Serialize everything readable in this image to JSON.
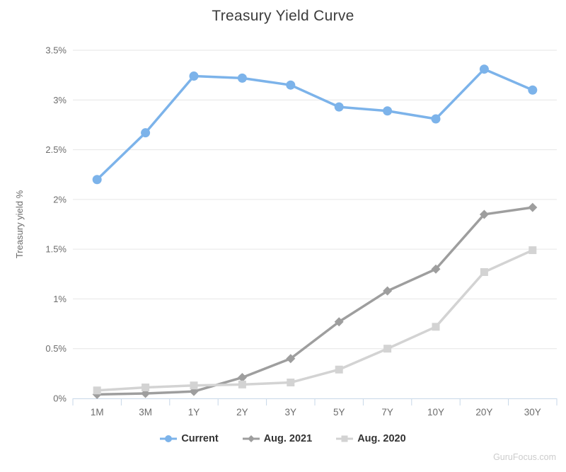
{
  "title": "Treasury Yield Curve",
  "watermark": "GuruFocus.com",
  "colors": {
    "title_text": "#3c3c3c",
    "tick_text": "#6d6d6d",
    "legend_text": "#333333",
    "watermark_text": "#cccccc",
    "gridline": "#e6e6e6",
    "axis_line": "#c7d7e8"
  },
  "chart_data": {
    "type": "line",
    "title": "Treasury Yield Curve",
    "xlabel": "",
    "ylabel": "Treasury yield %",
    "categories": [
      "1M",
      "3M",
      "1Y",
      "2Y",
      "3Y",
      "5Y",
      "7Y",
      "10Y",
      "20Y",
      "30Y"
    ],
    "y_ticks": [
      "0%",
      "0.5%",
      "1%",
      "1.5%",
      "2%",
      "2.5%",
      "3%",
      "3.5%"
    ],
    "ylim": [
      0,
      3.5
    ],
    "y_tick_step": 0.5,
    "grid": true,
    "legend_position": "bottom",
    "series": [
      {
        "name": "Current",
        "color": "#7cb3ea",
        "marker": "circle",
        "values": [
          2.2,
          2.67,
          3.24,
          3.22,
          3.15,
          2.93,
          2.89,
          2.81,
          3.31,
          3.1
        ]
      },
      {
        "name": "Aug. 2021",
        "color": "#9e9e9e",
        "marker": "diamond",
        "values": [
          0.04,
          0.05,
          0.07,
          0.21,
          0.4,
          0.77,
          1.08,
          1.3,
          1.85,
          1.92
        ]
      },
      {
        "name": "Aug. 2020",
        "color": "#d3d3d3",
        "marker": "square",
        "values": [
          0.08,
          0.11,
          0.13,
          0.14,
          0.16,
          0.29,
          0.5,
          0.72,
          1.27,
          1.49
        ]
      }
    ]
  }
}
